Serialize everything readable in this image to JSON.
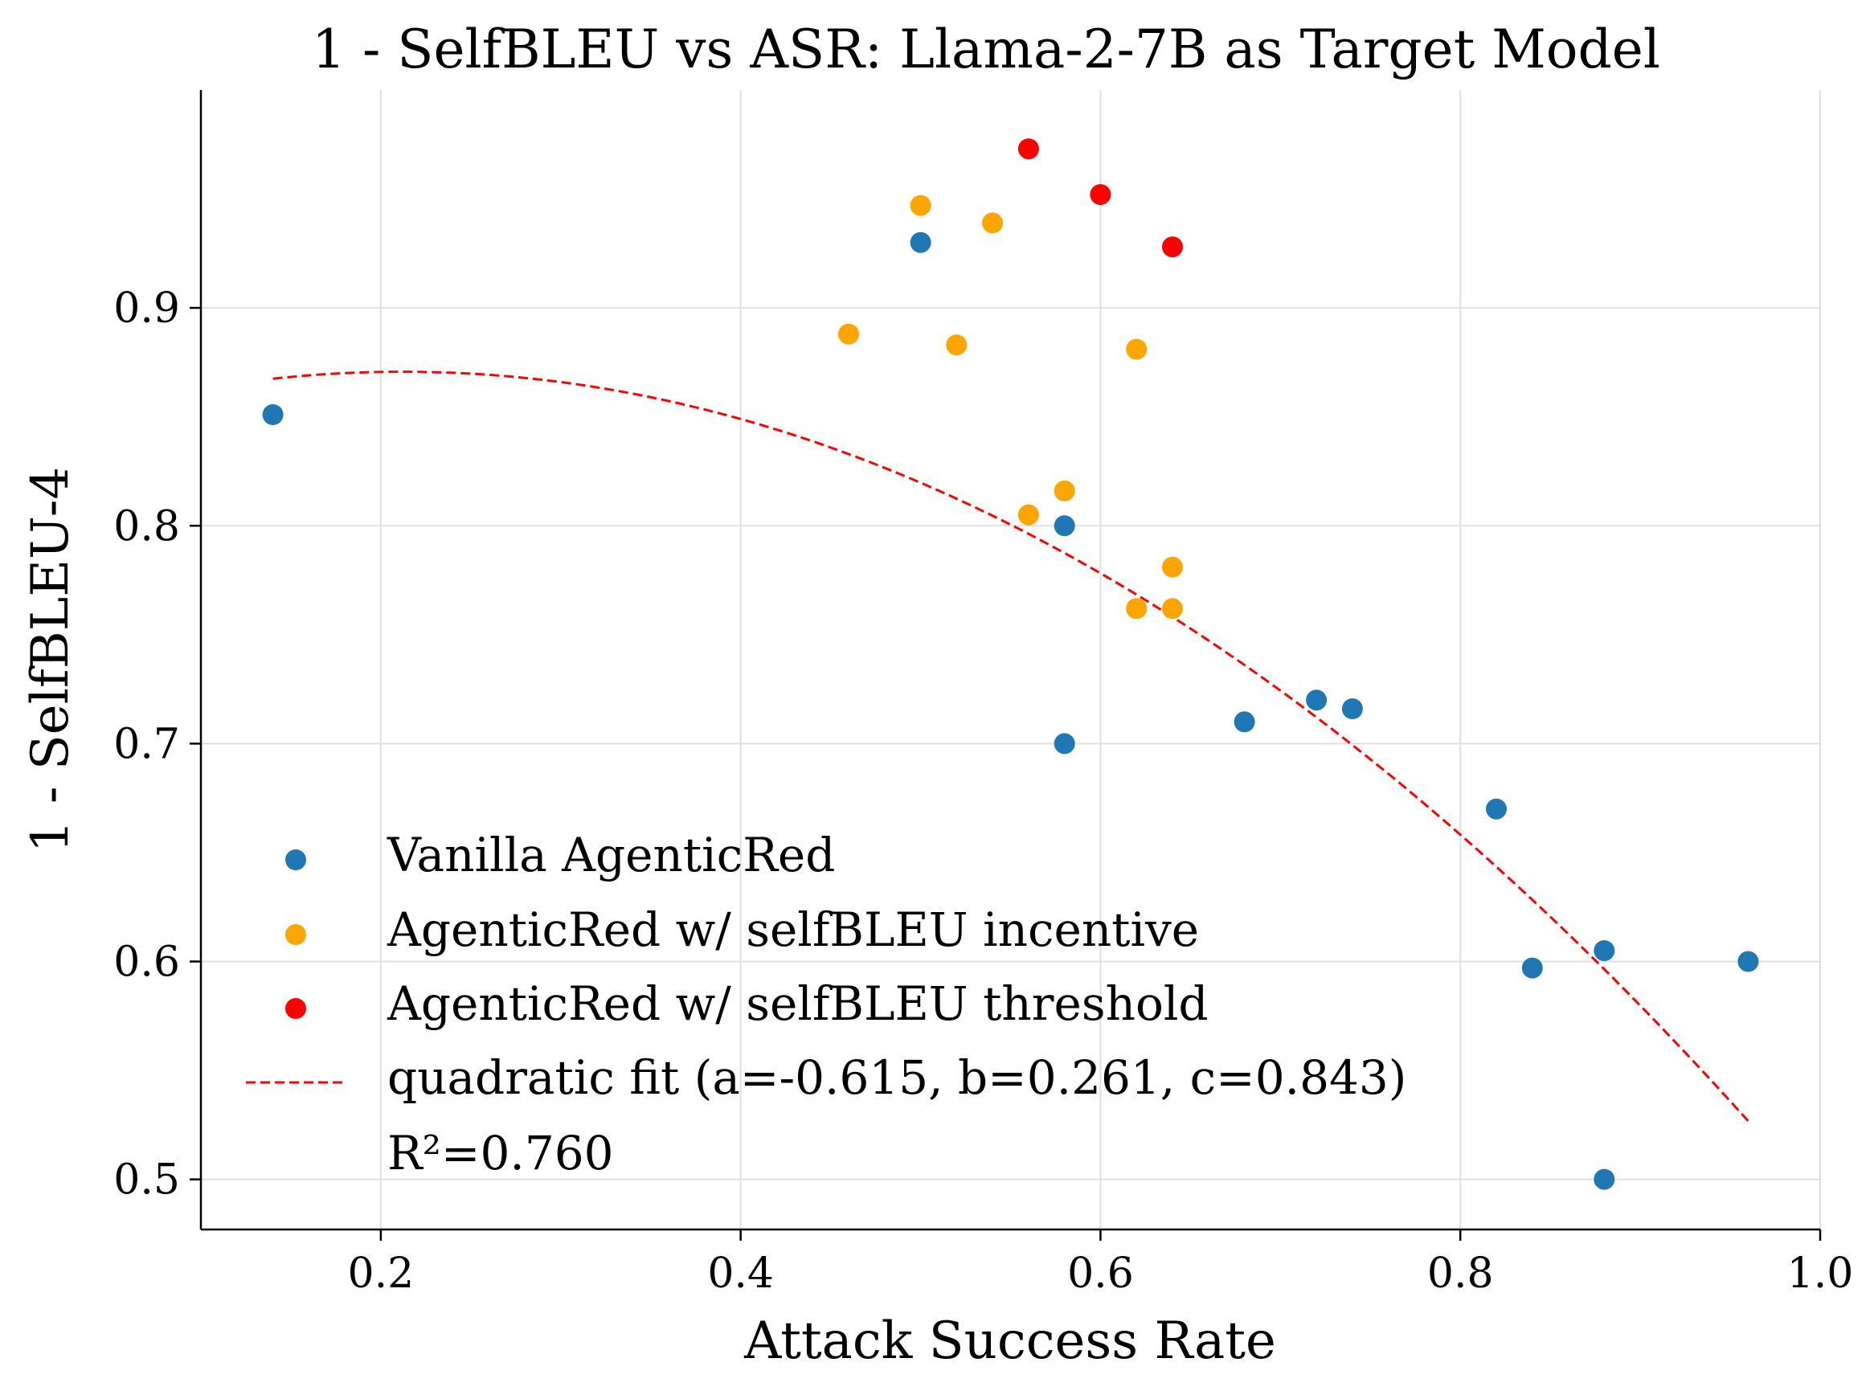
{
  "chart_data": {
    "type": "scatter",
    "title": "1 - SelfBLEU vs ASR: Llama-2-7B as Target Model",
    "xlabel": "Attack Success Rate",
    "ylabel": "1 - SelfBLEU-4",
    "xlim": [
      0.1,
      1.0
    ],
    "ylim": [
      0.477,
      1.0
    ],
    "xticks": [
      0.2,
      0.4,
      0.6,
      0.8,
      1.0
    ],
    "xtick_labels": [
      "0.2",
      "0.4",
      "0.6",
      "0.8",
      "1.0"
    ],
    "yticks": [
      0.5,
      0.6,
      0.7,
      0.8,
      0.9
    ],
    "ytick_labels": [
      "0.5",
      "0.6",
      "0.7",
      "0.8",
      "0.9"
    ],
    "grid": true,
    "legend_position": "lower-left",
    "series": [
      {
        "name": "Vanilla AgenticRed",
        "color": "#1f77b4",
        "points": [
          [
            0.14,
            0.851
          ],
          [
            0.5,
            0.93
          ],
          [
            0.58,
            0.8
          ],
          [
            0.58,
            0.7
          ],
          [
            0.68,
            0.71
          ],
          [
            0.72,
            0.72
          ],
          [
            0.74,
            0.716
          ],
          [
            0.82,
            0.67
          ],
          [
            0.84,
            0.597
          ],
          [
            0.88,
            0.605
          ],
          [
            0.88,
            0.5
          ],
          [
            0.96,
            0.6
          ]
        ]
      },
      {
        "name": "AgenticRed w/ selfBLEU incentive",
        "color": "#ffa500",
        "points": [
          [
            0.46,
            0.888
          ],
          [
            0.5,
            0.947
          ],
          [
            0.52,
            0.883
          ],
          [
            0.54,
            0.939
          ],
          [
            0.56,
            0.805
          ],
          [
            0.58,
            0.816
          ],
          [
            0.62,
            0.881
          ],
          [
            0.62,
            0.762
          ],
          [
            0.64,
            0.781
          ],
          [
            0.64,
            0.762
          ]
        ]
      },
      {
        "name": "AgenticRed w/ selfBLEU threshold",
        "color": "#ff0000",
        "points": [
          [
            0.56,
            0.973
          ],
          [
            0.6,
            0.952
          ],
          [
            0.64,
            0.928
          ]
        ]
      }
    ],
    "fit": {
      "label": "quadratic fit (a=-0.615, b=0.261, c=0.843)",
      "r2_label": "R²=0.760",
      "a": -0.615,
      "b": 0.261,
      "c": 0.843,
      "x_range": [
        0.14,
        0.96
      ],
      "color": "#ff0000"
    }
  }
}
